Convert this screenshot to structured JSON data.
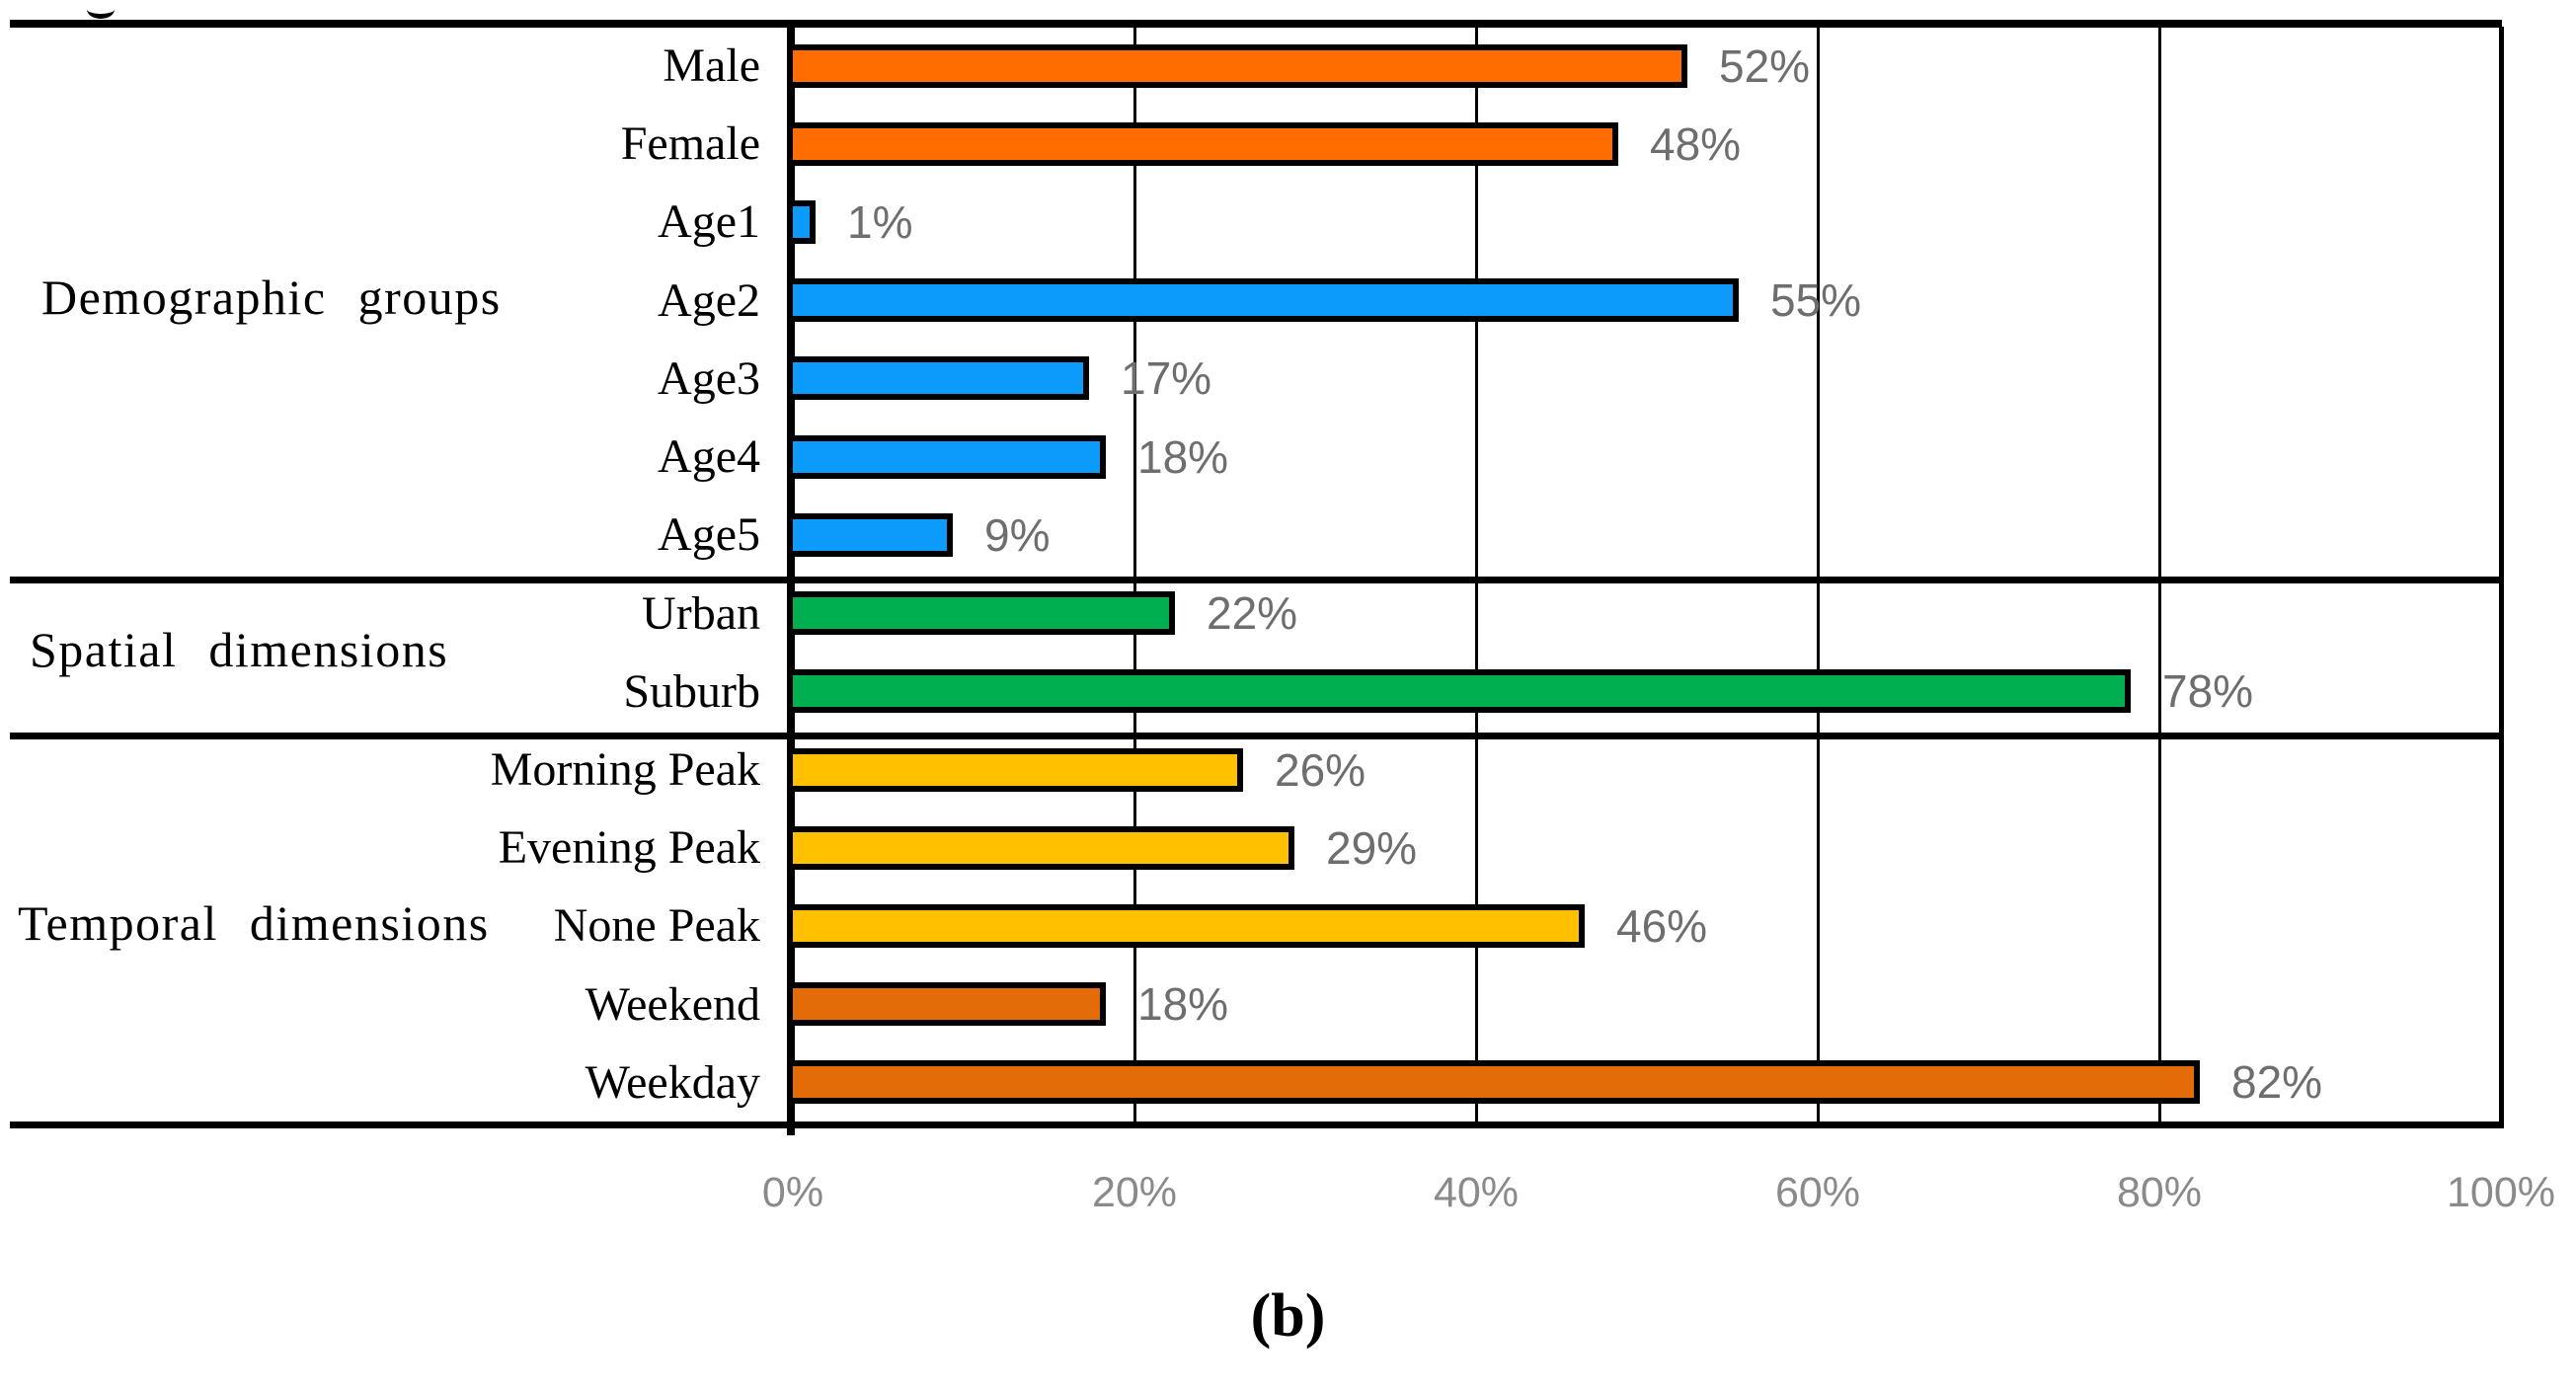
{
  "figure": {
    "caption": "(b)"
  },
  "chart_data": {
    "type": "bar",
    "orientation": "horizontal",
    "title": "",
    "xlabel": "",
    "ylabel": "",
    "xlim": [
      0,
      100
    ],
    "x_tick_labels": [
      "0%",
      "20%",
      "40%",
      "60%",
      "80%",
      "100%"
    ],
    "grid": true,
    "legend": "none",
    "value_labels_shown": true,
    "groups": [
      {
        "label": "Demographic groups",
        "rows": [
          {
            "category": "Male",
            "value": 52,
            "display": "52%",
            "color": "bright_orange"
          },
          {
            "category": "Female",
            "value": 48,
            "display": "48%",
            "color": "bright_orange"
          },
          {
            "category": "Age1",
            "value": 1,
            "display": "1%",
            "color": "blue"
          },
          {
            "category": "Age2",
            "value": 55,
            "display": "55%",
            "color": "blue"
          },
          {
            "category": "Age3",
            "value": 17,
            "display": "17%",
            "color": "blue"
          },
          {
            "category": "Age4",
            "value": 18,
            "display": "18%",
            "color": "blue"
          },
          {
            "category": "Age5",
            "value": 9,
            "display": "9%",
            "color": "blue"
          }
        ]
      },
      {
        "label": "Spatial dimensions",
        "rows": [
          {
            "category": "Urban",
            "value": 22,
            "display": "22%",
            "color": "green"
          },
          {
            "category": "Suburb",
            "value": 78,
            "display": "78%",
            "color": "green"
          }
        ]
      },
      {
        "label": "Temporal dimensions",
        "rows": [
          {
            "category": "Morning Peak",
            "value": 26,
            "display": "26%",
            "color": "yellow"
          },
          {
            "category": "Evening Peak",
            "value": 29,
            "display": "29%",
            "color": "yellow"
          },
          {
            "category": "None Peak",
            "value": 46,
            "display": "46%",
            "color": "yellow"
          },
          {
            "category": "Weekend",
            "value": 18,
            "display": "18%",
            "color": "dark_orange"
          },
          {
            "category": "Weekday",
            "value": 82,
            "display": "82%",
            "color": "dark_orange"
          }
        ]
      }
    ],
    "colors": {
      "bright_orange": "#FF6D00",
      "dark_orange": "#E36C09",
      "blue": "#0C9BFA",
      "green": "#00AF4F",
      "yellow": "#FFC000",
      "bar_border": "#000000",
      "gridline": "#000000",
      "value_label": "#6E6E6E",
      "axis_label": "#8A8A8A"
    }
  }
}
